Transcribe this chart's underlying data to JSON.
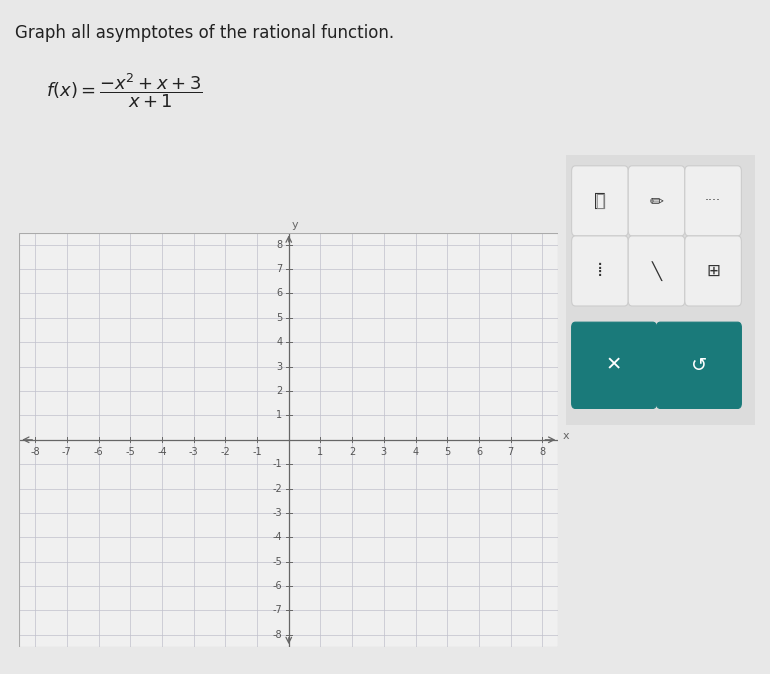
{
  "title": "Graph all asymptotes of the rational function.",
  "xlim": [
    -8.5,
    8.5
  ],
  "ylim": [
    -8.5,
    8.5
  ],
  "xticks": [
    -8,
    -7,
    -6,
    -5,
    -4,
    -3,
    -2,
    -1,
    1,
    2,
    3,
    4,
    5,
    6,
    7,
    8
  ],
  "yticks": [
    -8,
    -7,
    -6,
    -5,
    -4,
    -3,
    -2,
    -1,
    1,
    2,
    3,
    4,
    5,
    6,
    7,
    8
  ],
  "grid_color": "#c0c0cc",
  "axis_color": "#666666",
  "background_color": "#e8e8e8",
  "plot_bg_color": "#f0f0f0",
  "tick_fontsize": 7,
  "xlabel": "x",
  "ylabel": "y",
  "teal_color": "#1a7a7a",
  "panel_bg": "#e0e0e0",
  "button_bg": "#f0f0f0"
}
